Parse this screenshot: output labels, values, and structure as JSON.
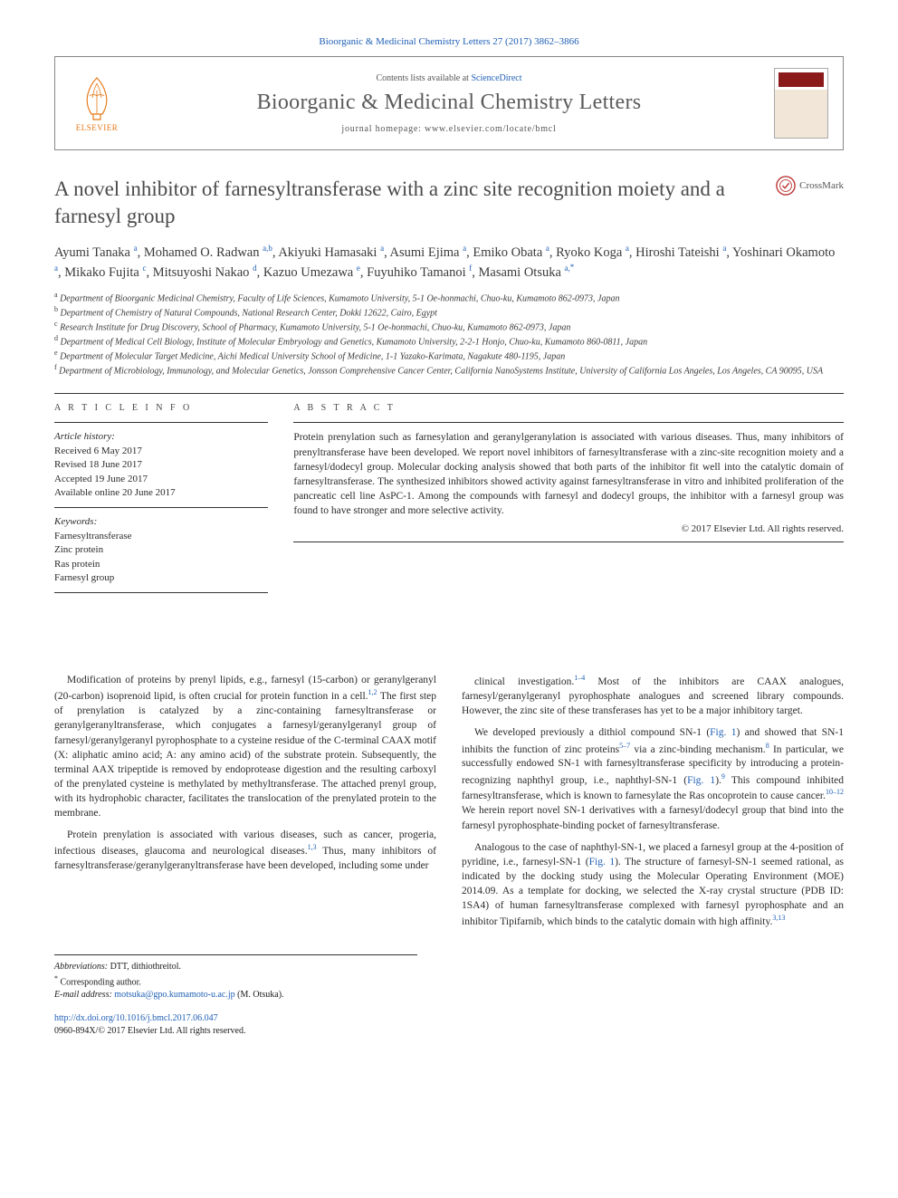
{
  "citation": "Bioorganic & Medicinal Chemistry Letters 27 (2017) 3862–3866",
  "header": {
    "contents_prefix": "Contents lists available at ",
    "contents_link": "ScienceDirect",
    "journal": "Bioorganic & Medicinal Chemistry Letters",
    "homepage_prefix": "journal homepage: ",
    "homepage_url": "www.elsevier.com/locate/bmcl",
    "elsevier_label": "ELSEVIER"
  },
  "crossmark_label": "CrossMark",
  "title": "A novel inhibitor of farnesyltransferase with a zinc site recognition moiety and a farnesyl group",
  "authors_html": "Ayumi Tanaka <sup>a</sup>, Mohamed O. Radwan <sup>a,b</sup>, Akiyuki Hamasaki <sup>a</sup>, Asumi Ejima <sup>a</sup>, Emiko Obata <sup>a</sup>, Ryoko Koga <sup>a</sup>, Hiroshi Tateishi <sup>a</sup>, Yoshinari Okamoto <sup>a</sup>, Mikako Fujita <sup>c</sup>, Mitsuyoshi Nakao <sup>d</sup>, Kazuo Umezawa <sup>e</sup>, Fuyuhiko Tamanoi <sup>f</sup>, Masami Otsuka <sup>a,</sup><span class='sup-star'><sup>*</sup></span>",
  "affiliations": [
    {
      "sup": "a",
      "text": "Department of Bioorganic Medicinal Chemistry, Faculty of Life Sciences, Kumamoto University, 5-1 Oe-honmachi, Chuo-ku, Kumamoto 862-0973, Japan"
    },
    {
      "sup": "b",
      "text": "Department of Chemistry of Natural Compounds, National Research Center, Dokki 12622, Cairo, Egypt"
    },
    {
      "sup": "c",
      "text": "Research Institute for Drug Discovery, School of Pharmacy, Kumamoto University, 5-1 Oe-honmachi, Chuo-ku, Kumamoto 862-0973, Japan"
    },
    {
      "sup": "d",
      "text": "Department of Medical Cell Biology, Institute of Molecular Embryology and Genetics, Kumamoto University, 2-2-1 Honjo, Chuo-ku, Kumamoto 860-0811, Japan"
    },
    {
      "sup": "e",
      "text": "Department of Molecular Target Medicine, Aichi Medical University School of Medicine, 1-1 Yazako-Karimata, Nagakute 480-1195, Japan"
    },
    {
      "sup": "f",
      "text": "Department of Microbiology, Immunology, and Molecular Genetics, Jonsson Comprehensive Cancer Center, California NanoSystems Institute, University of California Los Angeles, Los Angeles, CA 90095, USA"
    }
  ],
  "article_info": {
    "head": "A R T I C L E   I N F O",
    "history_label": "Article history:",
    "received": "Received 6 May 2017",
    "revised": "Revised 18 June 2017",
    "accepted": "Accepted 19 June 2017",
    "online": "Available online 20 June 2017",
    "keywords_label": "Keywords:",
    "keywords": [
      "Farnesyltransferase",
      "Zinc protein",
      "Ras protein",
      "Farnesyl group"
    ]
  },
  "abstract": {
    "head": "A B S T R A C T",
    "text": "Protein prenylation such as farnesylation and geranylgeranylation is associated with various diseases. Thus, many inhibitors of prenyltransferase have been developed. We report novel inhibitors of farnesyltransferase with a zinc-site recognition moiety and a farnesyl/dodecyl group. Molecular docking analysis showed that both parts of the inhibitor fit well into the catalytic domain of farnesyltransferase. The synthesized inhibitors showed activity against farnesyltransferase in vitro and inhibited proliferation of the pancreatic cell line AsPC-1. Among the compounds with farnesyl and dodecyl groups, the inhibitor with a farnesyl group was found to have stronger and more selective activity.",
    "copyright": "© 2017 Elsevier Ltd. All rights reserved."
  },
  "body": {
    "left": [
      "Modification of proteins by prenyl lipids, e.g., farnesyl (15-carbon) or geranylgeranyl (20-carbon) isoprenoid lipid, is often crucial for protein function in a cell.<sup>1,2</sup> The first step of prenylation is catalyzed by a zinc-containing farnesyltransferase or geranylgeranyltransferase, which conjugates a farnesyl/geranylgeranyl group of farnesyl/geranylgeranyl pyrophosphate to a cysteine residue of the C-terminal CAAX motif (X: aliphatic amino acid; A: any amino acid) of the substrate protein. Subsequently, the terminal AAX tripeptide is removed by endoprotease digestion and the resulting carboxyl of the prenylated cysteine is methylated by methyltransferase. The attached prenyl group, with its hydrophobic character, facilitates the translocation of the prenylated protein to the membrane.",
      "Protein prenylation is associated with various diseases, such as cancer, progeria, infectious diseases, glaucoma and neurological diseases.<sup>1,3</sup> Thus, many inhibitors of farnesyltransferase/geranylgeranyltransferase have been developed, including some under"
    ],
    "right": [
      "clinical investigation.<sup>1–4</sup> Most of the inhibitors are CAAX analogues, farnesyl/geranylgeranyl pyrophosphate analogues and screened library compounds. However, the zinc site of these transferases has yet to be a major inhibitory target.",
      "We developed previously a dithiol compound SN-1 (<span class='figref'>Fig. 1</span>) and showed that SN-1 inhibits the function of zinc proteins<sup>5–7</sup> via a zinc-binding mechanism.<sup>8</sup> In particular, we successfully endowed SN-1 with farnesyltransferase specificity by introducing a protein-recognizing naphthyl group, i.e., naphthyl-SN-1 (<span class='figref'>Fig. 1</span>).<sup>9</sup> This compound inhibited farnesyltransferase, which is known to farnesylate the Ras oncoprotein to cause cancer.<sup>10–12</sup> We herein report novel SN-1 derivatives with a farnesyl/dodecyl group that bind into the farnesyl pyrophosphate-binding pocket of farnesyltransferase.",
      "Analogous to the case of naphthyl-SN-1, we placed a farnesyl group at the 4-position of pyridine, i.e., farnesyl-SN-1 (<span class='figref'>Fig. 1</span>). The structure of farnesyl-SN-1 seemed rational, as indicated by the docking study using the Molecular Operating Environment (MOE) 2014.09. As a template for docking, we selected the X-ray crystal structure (PDB ID: 1SA4) of human farnesyltransferase complexed with farnesyl pyrophosphate and an inhibitor Tipifarnib, which binds to the catalytic domain with high affinity.<sup>3,13</sup>"
    ]
  },
  "footnotes": {
    "abbrev_label": "Abbreviations:",
    "abbrev_text": " DTT, dithiothreitol.",
    "corr_label": "Corresponding author.",
    "email_label": "E-mail address:",
    "email": "motsuka@gpo.kumamoto-u.ac.jp",
    "email_suffix": " (M. Otsuka)."
  },
  "footer": {
    "doi": "http://dx.doi.org/10.1016/j.bmcl.2017.06.047",
    "issn_copyright": "0960-894X/© 2017 Elsevier Ltd. All rights reserved."
  },
  "colors": {
    "link": "#2060b5",
    "elsevier_orange": "#e67817",
    "text": "#2a2a2a",
    "title_gray": "#4a4a4a"
  }
}
